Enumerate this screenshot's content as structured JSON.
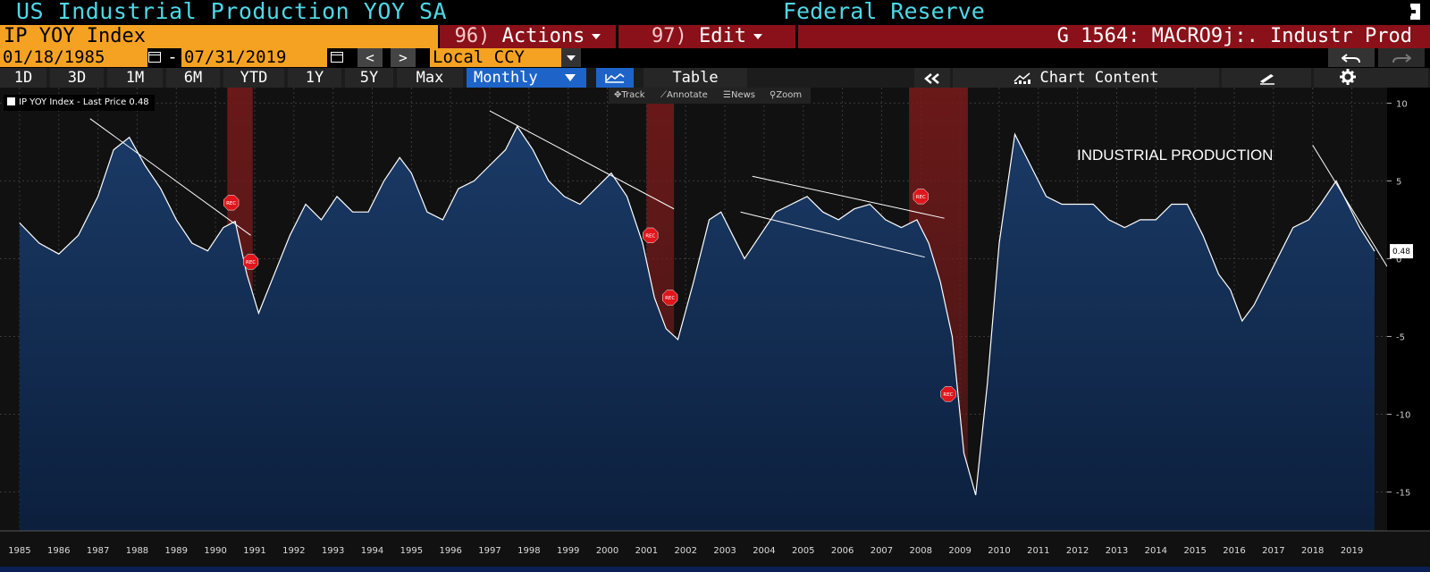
{
  "title": {
    "left": "US Industrial Production YOY SA",
    "right": "Federal Reserve"
  },
  "toolbar": {
    "ticker": "IP  YOY Index",
    "actions_num": "96)",
    "actions_label": "Actions",
    "edit_num": "97)",
    "edit_label": "Edit",
    "description": "G 1564: MACRO9j:. Industr Prod"
  },
  "dates": {
    "start": "01/18/1985",
    "separator": "-",
    "end": "07/31/2019",
    "currency": "Local CCY",
    "prev": "<",
    "next": ">"
  },
  "ranges": [
    "1D",
    "3D",
    "1M",
    "6M",
    "YTD",
    "1Y",
    "5Y",
    "Max"
  ],
  "periodicity": "Monthly",
  "table_label": "Table",
  "chart_content_label": "Chart Content",
  "chart_tools": {
    "track": "Track",
    "annotate": "Annotate",
    "news": "News",
    "zoom": "Zoom"
  },
  "legend": "IP  YOY Index - Last Price 0.48",
  "annotation_text": "INDUSTRIAL PRODUCTION",
  "rec_label": "REC",
  "colors": {
    "title": "#4fd8e6",
    "ticker_bg": "#f5a223",
    "menu_bg": "#8a1119",
    "active_btn": "#1e64c8",
    "area_fill": "#102b4e",
    "recession": "#7a1a1a"
  },
  "chart_data": {
    "type": "area",
    "series": [
      {
        "name": "IP  YOY Index",
        "last_price": "0.48"
      }
    ],
    "x": [
      1985.0,
      1985.5,
      1986.0,
      1986.5,
      1987.0,
      1987.4,
      1987.8,
      1988.2,
      1988.6,
      1989.0,
      1989.4,
      1989.8,
      1990.2,
      1990.5,
      1990.8,
      1991.1,
      1991.5,
      1991.9,
      1992.3,
      1992.7,
      1993.1,
      1993.5,
      1993.9,
      1994.3,
      1994.7,
      1995.0,
      1995.4,
      1995.8,
      1996.2,
      1996.6,
      1997.0,
      1997.4,
      1997.7,
      1998.1,
      1998.5,
      1998.9,
      1999.3,
      1999.7,
      2000.1,
      2000.5,
      2000.9,
      2001.2,
      2001.5,
      2001.8,
      2002.2,
      2002.6,
      2002.9,
      2003.2,
      2003.5,
      2003.9,
      2004.3,
      2004.7,
      2005.1,
      2005.5,
      2005.9,
      2006.3,
      2006.7,
      2007.1,
      2007.5,
      2007.9,
      2008.2,
      2008.5,
      2008.8,
      2009.1,
      2009.4,
      2009.7,
      2010.0,
      2010.4,
      2010.8,
      2011.2,
      2011.6,
      2012.0,
      2012.4,
      2012.8,
      2013.2,
      2013.6,
      2014.0,
      2014.4,
      2014.8,
      2015.2,
      2015.6,
      2015.9,
      2016.2,
      2016.5,
      2016.8,
      2017.1,
      2017.5,
      2017.9,
      2018.2,
      2018.6,
      2018.9,
      2019.2,
      2019.58
    ],
    "values": [
      2.3,
      1.0,
      0.3,
      1.5,
      4.0,
      7.0,
      7.8,
      6.0,
      4.5,
      2.5,
      1.0,
      0.5,
      2.0,
      2.4,
      -1.0,
      -3.5,
      -1.0,
      1.5,
      3.5,
      2.5,
      4.0,
      3.0,
      3.0,
      5.0,
      6.5,
      5.5,
      3.0,
      2.5,
      4.5,
      5.0,
      6.0,
      7.0,
      8.5,
      7.0,
      5.0,
      4.0,
      3.5,
      4.5,
      5.5,
      4.0,
      1.0,
      -2.5,
      -4.5,
      -5.2,
      -1.5,
      2.5,
      3.0,
      1.5,
      0.0,
      1.5,
      3.0,
      3.5,
      4.0,
      3.0,
      2.5,
      3.2,
      3.5,
      2.5,
      2.0,
      2.5,
      1.0,
      -1.5,
      -5.0,
      -12.5,
      -15.2,
      -8.0,
      1.0,
      8.0,
      6.0,
      4.0,
      3.5,
      3.5,
      3.5,
      2.5,
      2.0,
      2.5,
      2.5,
      3.5,
      3.5,
      1.5,
      -1.0,
      -2.0,
      -4.0,
      -3.0,
      -1.5,
      0.0,
      2.0,
      2.5,
      3.5,
      5.0,
      3.5,
      2.0,
      0.48
    ],
    "xlim": [
      1984.5,
      2019.9
    ],
    "ylim": [
      -17.5,
      11
    ],
    "y_ticks": [
      10,
      5,
      0,
      -5,
      -10,
      -15
    ],
    "x_ticks": [
      1985,
      1986,
      1987,
      1988,
      1989,
      1990,
      1991,
      1992,
      1993,
      1994,
      1995,
      1996,
      1997,
      1998,
      1999,
      2000,
      2001,
      2002,
      2003,
      2004,
      2005,
      2006,
      2007,
      2008,
      2009,
      2010,
      2011,
      2012,
      2013,
      2014,
      2015,
      2016,
      2017,
      2018,
      2019
    ],
    "recessions": [
      [
        1990.3,
        1990.95
      ],
      [
        2001.0,
        2001.7
      ],
      [
        2007.7,
        2009.2
      ]
    ],
    "trendlines": [
      {
        "from": [
          1986.8,
          9.0
        ],
        "to": [
          1990.9,
          1.5
        ]
      },
      {
        "from": [
          1997.0,
          9.5
        ],
        "to": [
          2001.7,
          3.2
        ]
      },
      {
        "from": [
          2003.7,
          5.3
        ],
        "to": [
          2008.6,
          2.6
        ]
      },
      {
        "from": [
          2003.4,
          3.0
        ],
        "to": [
          2008.1,
          0.1
        ]
      },
      {
        "from": [
          2018.0,
          7.3
        ],
        "to": [
          2019.9,
          -0.5
        ]
      }
    ],
    "rec_markers": [
      [
        1990.4,
        3.6
      ],
      [
        1990.9,
        -0.2
      ],
      [
        2001.1,
        1.5
      ],
      [
        2001.6,
        -2.5
      ],
      [
        2008.0,
        4.0
      ],
      [
        2008.7,
        -8.7
      ]
    ],
    "last_label": "0.48",
    "grid": true,
    "legend_placement": "top-left"
  }
}
